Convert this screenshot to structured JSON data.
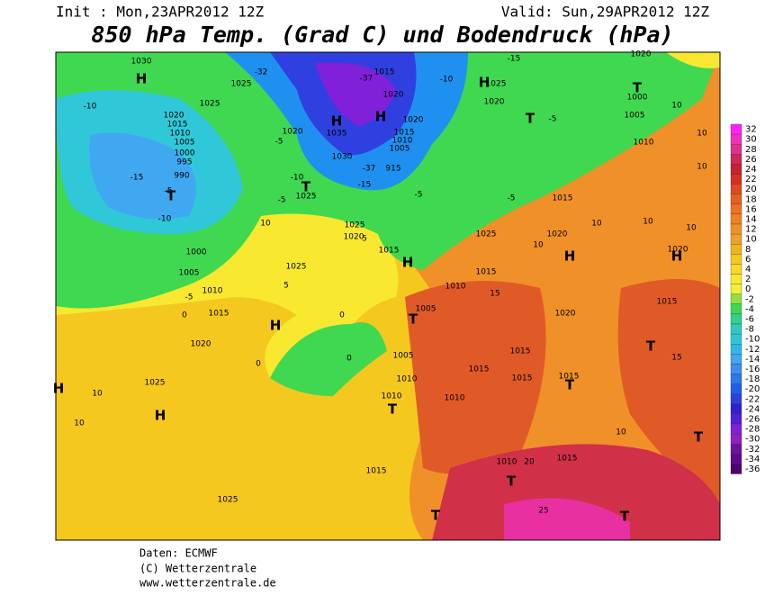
{
  "header": {
    "init": "Init : Mon,23APR2012 12Z",
    "valid": "Valid: Sun,29APR2012 12Z",
    "title": "850 hPa Temp. (Grad C) und Bodendruck (hPa)"
  },
  "footer": {
    "source": "Daten: ECMWF",
    "copyright": "(C) Wetterzentrale",
    "url": "www.wetterzentrale.de"
  },
  "colorbar": {
    "ticks": [
      32,
      30,
      28,
      26,
      24,
      22,
      20,
      18,
      16,
      14,
      12,
      10,
      8,
      6,
      4,
      2,
      0,
      -2,
      -4,
      -6,
      -8,
      -10,
      -12,
      -14,
      -16,
      -18,
      -20,
      -22,
      -24,
      -26,
      -28,
      -30,
      -32,
      -34,
      -36
    ],
    "colors": [
      "#ff20ff",
      "#f030c0",
      "#e03090",
      "#d02858",
      "#c82030",
      "#d83020",
      "#e04a20",
      "#e86020",
      "#f07020",
      "#f08020",
      "#f09028",
      "#f0a028",
      "#f0b420",
      "#f5c820",
      "#f8d828",
      "#f8e830",
      "#f0f038",
      "#90e040",
      "#40d850",
      "#30d088",
      "#30c8c0",
      "#30c8d8",
      "#30b8e8",
      "#40a8f0",
      "#3890f0",
      "#2878f0",
      "#2060e8",
      "#3040e0",
      "#3020d0",
      "#5020d8",
      "#8020d8",
      "#9020c0",
      "#7010a0",
      "#600890",
      "#500070"
    ]
  },
  "map_labels": [
    "1030",
    "H",
    "1025",
    "1025",
    "-10",
    "1020",
    "1015",
    "1010",
    "1005",
    "1000",
    "995",
    "990",
    "-15",
    "-5",
    "T",
    "-10",
    "1000",
    "1005",
    "1010",
    "-5",
    "0",
    "1015",
    "1020",
    "1025",
    "10",
    "H",
    "10",
    "H",
    "1025",
    "1025",
    "5",
    "H",
    "0",
    "0",
    "0",
    "T",
    "1025",
    "1020",
    "-5",
    "1035",
    "H",
    "H",
    "1020",
    "1015",
    "-37",
    "-32",
    "1030",
    "-37",
    "915",
    "-15",
    "1020",
    "1015",
    "1010",
    "1005",
    "-5",
    "1025",
    "1020",
    "1015",
    "H",
    "1025",
    "1015",
    "1010",
    "15",
    "1005",
    "T",
    "1005",
    "1010",
    "1010",
    "T",
    "1010",
    "1015",
    "1015",
    "1015",
    "1015",
    "T",
    "1020",
    "1015",
    "T",
    "15",
    "10",
    "T",
    "1015",
    "1010",
    "20",
    "T",
    "25",
    "T",
    "T",
    "1015",
    "1020",
    "10",
    "H",
    "1020",
    "H",
    "10",
    "10",
    "10",
    "1015",
    "-5",
    "T",
    "-5",
    "1020",
    "1025",
    "H",
    "-10",
    "-15",
    "1020",
    "1000",
    "T",
    "1005",
    "1010",
    "10",
    "10",
    "10",
    "-10",
    "-5",
    "10",
    "5"
  ]
}
